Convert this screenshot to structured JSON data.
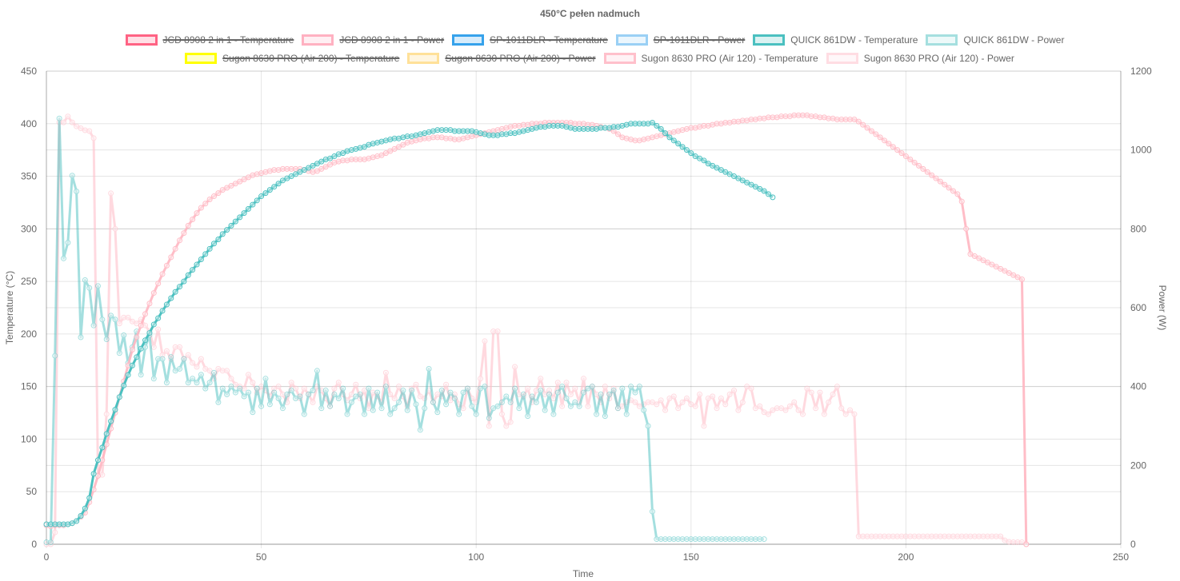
{
  "chart_data": {
    "type": "line",
    "title": "450°C pełen nadmuch",
    "xlabel": "Time",
    "ylabel_left": "Temperature (°C)",
    "ylabel_right": "Power (W)",
    "xlim": [
      0,
      250
    ],
    "ylim_left": [
      0,
      450
    ],
    "ylim_right": [
      0,
      1200
    ],
    "x_ticks": [
      "0",
      "50",
      "100",
      "150",
      "200",
      "250"
    ],
    "y_left_ticks": [
      "0",
      "50",
      "100",
      "150",
      "200",
      "250",
      "300",
      "350",
      "400",
      "450"
    ],
    "y_right_ticks": [
      "0",
      "200",
      "400",
      "600",
      "800",
      "1000",
      "1200"
    ],
    "grid": true,
    "legend_position": "top",
    "legend": [
      {
        "label": "JCD 8908 2 in 1 - Temperature",
        "border": "#ff6384",
        "fill": "#ffe0e6",
        "hidden": true
      },
      {
        "label": "JCD 8908 2 in 1 - Power",
        "border": "#ffb1c1",
        "fill": "#ffeff3",
        "hidden": true
      },
      {
        "label": "SP-1011DLR - Temperature",
        "border": "#36a2eb",
        "fill": "#d7ecfb",
        "hidden": true
      },
      {
        "label": "SP-1011DLR - Power",
        "border": "#9ad0f5",
        "fill": "#ebf6fd",
        "hidden": true
      },
      {
        "label": "QUICK 861DW - Temperature",
        "border": "#4bc0c0",
        "fill": "#dbf2f2",
        "hidden": false
      },
      {
        "label": "QUICK 861DW - Power",
        "border": "#a5dfdf",
        "fill": "#edf9f9",
        "hidden": false
      },
      {
        "label": "Sugon 8630 PRO (Air 200) - Temperature",
        "border": "#ffff00",
        "fill": "#ffffcc",
        "hidden": true
      },
      {
        "label": "Sugon 8630 PRO (Air 200) - Power",
        "border": "#ffe199",
        "fill": "#fff6e0",
        "hidden": true
      },
      {
        "label": "Sugon 8630 PRO (Air 120) - Temperature",
        "border": "#ffc0cb",
        "fill": "#fff2f5",
        "hidden": false
      },
      {
        "label": "Sugon 8630 PRO (Air 120) - Power",
        "border": "#ffdde3",
        "fill": "#fff7f9",
        "hidden": false
      }
    ],
    "series": [
      {
        "name": "Sugon 8630 PRO (Air 120) - Power",
        "axis": "right",
        "color": "#ffc0cb",
        "opacity": 0.6,
        "x_start": 0,
        "x_step": 1,
        "values": [
          0,
          0,
          30,
          1070,
          1070,
          1085,
          1070,
          1060,
          1055,
          1050,
          1048,
          1030,
          176,
          176,
          330,
          890,
          800,
          560,
          575,
          575,
          565,
          560,
          570,
          555,
          540,
          500,
          545,
          480,
          490,
          470,
          500,
          500,
          470,
          480,
          460,
          450,
          470,
          445,
          440,
          420,
          445,
          440,
          440,
          420,
          405,
          400,
          395,
          430,
          410,
          385,
          400,
          390,
          375,
          395,
          400,
          380,
          360,
          410,
          395,
          370,
          395,
          380,
          360,
          400,
          390,
          370,
          350,
          395,
          410,
          380,
          365,
          380,
          405,
          370,
          390,
          345,
          385,
          375,
          360,
          435,
          380,
          370,
          400,
          375,
          350,
          395,
          405,
          375,
          370,
          390,
          360,
          380,
          375,
          405,
          365,
          380,
          355,
          345,
          395,
          370,
          360,
          420,
          515,
          300,
          540,
          540,
          330,
          300,
          310,
          450,
          380,
          375,
          395,
          360,
          390,
          420,
          380,
          390,
          370,
          410,
          350,
          410,
          380,
          395,
          360,
          420,
          350,
          400,
          380,
          360,
          400,
          370,
          395,
          345,
          350,
          360,
          365,
          360,
          350,
          355,
          360,
          360,
          355,
          365,
          340,
          370,
          375,
          345,
          360,
          370,
          355,
          350,
          380,
          300,
          370,
          375,
          345,
          370,
          355,
          380,
          390,
          340,
          360,
          400,
          395,
          345,
          350,
          335,
          330,
          340,
          345,
          345,
          340,
          350,
          360,
          340,
          330,
          395,
          385,
          345,
          385,
          330,
          360,
          380,
          400,
          345,
          330,
          340,
          330,
          20,
          20,
          20,
          20,
          20,
          20,
          20,
          20,
          20,
          20,
          20,
          20,
          20,
          20,
          20,
          20,
          20,
          20,
          20,
          20,
          20,
          20,
          20,
          20,
          20,
          20,
          20,
          20,
          20,
          20,
          20,
          20,
          20,
          20,
          10,
          6,
          5,
          5,
          5,
          0
        ]
      },
      {
        "name": "QUICK 861DW - Power",
        "axis": "right",
        "color": "#4bc0c0",
        "opacity": 0.5,
        "x_start": 0,
        "x_step": 1,
        "values": [
          5,
          5,
          478,
          1080,
          725,
          765,
          935,
          895,
          525,
          670,
          650,
          555,
          655,
          570,
          520,
          580,
          570,
          485,
          530,
          460,
          500,
          540,
          430,
          500,
          530,
          420,
          470,
          470,
          410,
          475,
          440,
          445,
          470,
          410,
          420,
          410,
          430,
          395,
          410,
          435,
          360,
          395,
          380,
          400,
          385,
          395,
          375,
          385,
          335,
          395,
          350,
          420,
          355,
          385,
          370,
          345,
          380,
          390,
          370,
          375,
          330,
          380,
          390,
          440,
          345,
          390,
          350,
          380,
          370,
          395,
          330,
          360,
          375,
          380,
          330,
          395,
          340,
          385,
          345,
          400,
          330,
          345,
          360,
          390,
          340,
          390,
          355,
          290,
          345,
          445,
          360,
          335,
          390,
          355,
          385,
          370,
          330,
          385,
          395,
          350,
          330,
          395,
          400,
          320,
          345,
          350,
          360,
          375,
          360,
          395,
          345,
          380,
          325,
          375,
          360,
          390,
          340,
          380,
          330,
          385,
          400,
          370,
          350,
          360,
          350,
          385,
          395,
          400,
          330,
          380,
          325,
          380,
          390,
          345,
          395,
          330,
          400,
          385,
          400,
          340,
          300,
          83,
          13,
          13,
          13,
          13,
          13,
          13,
          13,
          13,
          13,
          13,
          13,
          13,
          13,
          13,
          13,
          13,
          13,
          13,
          13,
          13,
          13,
          13,
          13,
          13,
          13,
          13
        ]
      },
      {
        "name": "Sugon 8630 PRO (Air 120) - Temperature",
        "axis": "left",
        "color": "#ffb6c1",
        "opacity": 0.9,
        "x_start": 0,
        "x_step": 1,
        "values": [
          18,
          17,
          18,
          18,
          18,
          19,
          20,
          22,
          26,
          30,
          40,
          52,
          65,
          80,
          95,
          110,
          125,
          140,
          155,
          170,
          185,
          197,
          208,
          219,
          229,
          239,
          248,
          257,
          265,
          273,
          281,
          289,
          296,
          303,
          309,
          315,
          320,
          324,
          328,
          331,
          334,
          337,
          339,
          341,
          343,
          345,
          347,
          349,
          351,
          352,
          353,
          354,
          355,
          356,
          356,
          357,
          357,
          357,
          357,
          357,
          356,
          355,
          354,
          355,
          357,
          359,
          361,
          363,
          364,
          365,
          365,
          366,
          366,
          366,
          366,
          367,
          368,
          369,
          370,
          372,
          374,
          376,
          378,
          380,
          382,
          383,
          384,
          385,
          386,
          386,
          387,
          387,
          387,
          386,
          386,
          385,
          385,
          386,
          387,
          388,
          389,
          390,
          391,
          392,
          393,
          394,
          395,
          396,
          397,
          398,
          398,
          399,
          399,
          400,
          400,
          400,
          401,
          401,
          401,
          401,
          401,
          401,
          401,
          400,
          400,
          400,
          399,
          399,
          398,
          397,
          396,
          395,
          393,
          390,
          387,
          386,
          385,
          384,
          384,
          385,
          386,
          387,
          388,
          389,
          390,
          391,
          392,
          393,
          394,
          395,
          396,
          396,
          397,
          398,
          398,
          399,
          400,
          400,
          401,
          401,
          402,
          402,
          403,
          403,
          404,
          404,
          405,
          405,
          406,
          406,
          406,
          407,
          407,
          407,
          408,
          408,
          408,
          408,
          407,
          407,
          406,
          406,
          405,
          405,
          404,
          404,
          404,
          404,
          404,
          402,
          399,
          396,
          393,
          390,
          387,
          384,
          381,
          378,
          375,
          372,
          369,
          366,
          363,
          360,
          357,
          354,
          351,
          348,
          345,
          342,
          339,
          336,
          333,
          326,
          300,
          276,
          274,
          272,
          270,
          268,
          266,
          264,
          262,
          260,
          258,
          256,
          254,
          252,
          0
        ]
      },
      {
        "name": "QUICK 861DW - Temperature",
        "axis": "left",
        "color": "#4bc0c0",
        "opacity": 1,
        "x_start": 0,
        "x_step": 1,
        "values": [
          19,
          19,
          19,
          19,
          19,
          19,
          20,
          22,
          27,
          34,
          44,
          67,
          80,
          92,
          105,
          117,
          128,
          140,
          151,
          161,
          170,
          178,
          186,
          194,
          201,
          209,
          215,
          222,
          228,
          234,
          240,
          245,
          250,
          256,
          261,
          266,
          271,
          276,
          281,
          286,
          290,
          295,
          299,
          303,
          307,
          311,
          315,
          319,
          323,
          327,
          331,
          334,
          337,
          340,
          343,
          346,
          348,
          350,
          352,
          354,
          356,
          358,
          360,
          362,
          364,
          366,
          367,
          369,
          371,
          372,
          374,
          375,
          376,
          377,
          378,
          380,
          381,
          382,
          383,
          384,
          385,
          386,
          386,
          387,
          388,
          388,
          389,
          390,
          391,
          392,
          393,
          394,
          394,
          394,
          394,
          393,
          393,
          393,
          393,
          393,
          392,
          391,
          390,
          389,
          389,
          389,
          390,
          390,
          391,
          391,
          392,
          393,
          394,
          395,
          396,
          397,
          397,
          398,
          398,
          398,
          398,
          397,
          396,
          395,
          395,
          395,
          395,
          395,
          395,
          396,
          396,
          396,
          397,
          397,
          398,
          399,
          400,
          400,
          400,
          400,
          400,
          401,
          398,
          395,
          391,
          387,
          384,
          381,
          378,
          375,
          372,
          369,
          367,
          365,
          362,
          360,
          358,
          356,
          354,
          352,
          350,
          348,
          346,
          344,
          342,
          340,
          338,
          336,
          333,
          330
        ]
      }
    ]
  }
}
